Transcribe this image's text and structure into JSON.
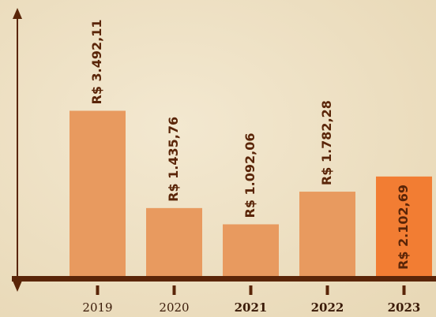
{
  "chart_data": {
    "type": "bar",
    "categories": [
      "2019",
      "2020",
      "2021",
      "2022",
      "2023"
    ],
    "values": [
      3492.11,
      1435.76,
      1092.06,
      1782.28,
      2102.69
    ],
    "value_labels": [
      "R$ 3.492,11",
      "R$ 1.435,76",
      "R$ 1.092,06",
      "R$ 1.782,28",
      "R$ 2.102,69"
    ],
    "colors": [
      "#e89a5f",
      "#e89a5f",
      "#e89a5f",
      "#e89a5f",
      "#f27d33"
    ],
    "bold": [
      false,
      false,
      true,
      true,
      true
    ],
    "label_inside": [
      false,
      false,
      false,
      false,
      true
    ],
    "ylim": [
      0,
      5500
    ]
  }
}
